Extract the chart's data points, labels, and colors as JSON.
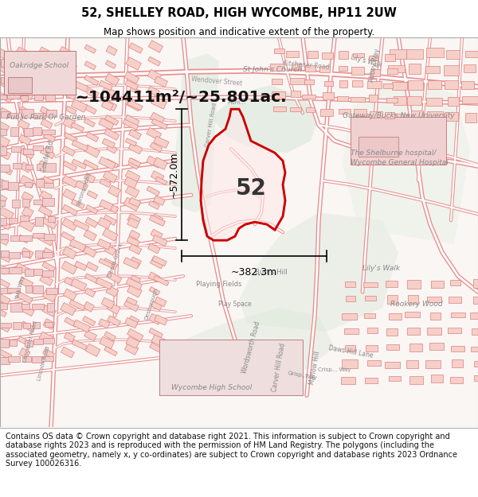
{
  "title_line1": "52, SHELLEY ROAD, HIGH WYCOMBE, HP11 2UW",
  "title_line2": "Map shows position and indicative extent of the property.",
  "area_text": "~104411m²/~25.801ac.",
  "label_52": "52",
  "dim_vertical": "~572.0m",
  "dim_horizontal": "~382.3m",
  "footer_text": "Contains OS data © Crown copyright and database right 2021. This information is subject to Crown copyright and database rights 2023 and is reproduced with the permission of HM Land Registry. The polygons (including the associated geometry, namely x, y co-ordinates) are subject to Crown copyright and database rights 2023 Ordnance Survey 100026316.",
  "bg_color": "#ffffff",
  "map_bg": "#f9f3f0",
  "green_color": "#e8f0e8",
  "road_outline": "#e8a0a0",
  "road_fill": "#ffffff",
  "building_color": "#f5d0d0",
  "building_edge": "#e08080",
  "poly_fill": "#ffeeee",
  "poly_edge": "#dd0000",
  "dim_color": "#000000",
  "label_color": "#222222",
  "footer_color": "#111111",
  "title_color": "#000000"
}
